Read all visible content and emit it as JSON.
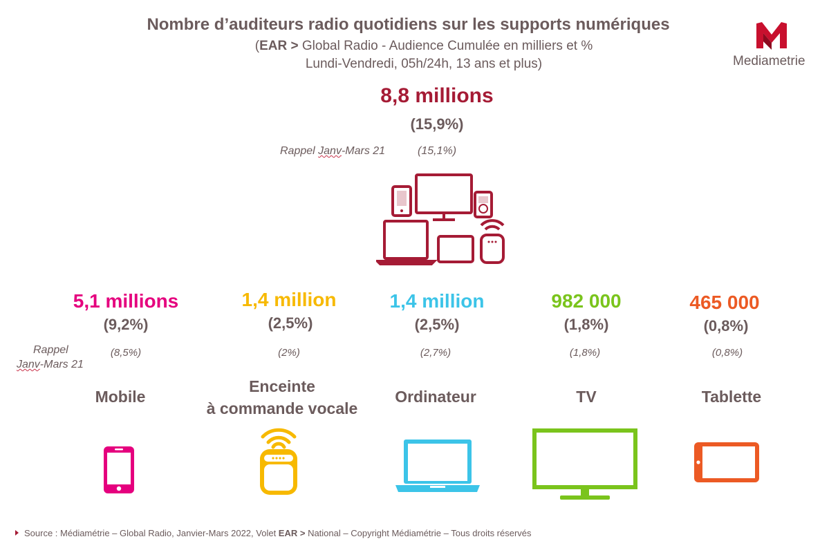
{
  "title": "Nombre d’auditeurs radio quotidiens sur les supports numériques",
  "subtitle": {
    "open_paren": "(",
    "ear_label": "EAR >",
    "line1_rest": " Global Radio - Audience Cumulée en milliers et %",
    "line2": "Lundi-Vendredi, 05h/24h, 13 ans et plus)"
  },
  "logo": {
    "text": "Mediametrie",
    "letter": "M",
    "icon": "mediametrie-logo"
  },
  "total": {
    "value": "8,8 millions",
    "pct": "(15,9%)",
    "recall_label_1": "Rappel ",
    "recall_label_2": "Janv",
    "recall_label_3": "-Mars 21",
    "recall_pct": "(15,1%)",
    "icon": "devices-group-icon",
    "color": "#a51b35"
  },
  "recall_side": {
    "line1": "Rappel",
    "line2a": "Janv",
    "line2b": "-Mars 21"
  },
  "supports": [
    {
      "value": "5,1 millions",
      "pct": "(9,2%)",
      "recall": "(8,5%)",
      "label": "Mobile",
      "color": "#e5007e",
      "icon": "smartphone-icon"
    },
    {
      "value": "1,4 million",
      "pct": "(2,5%)",
      "recall": "(2%)",
      "label_line1": "Enceinte",
      "label_line2": "à commande vocale",
      "color": "#f7b900",
      "icon": "smart-speaker-icon"
    },
    {
      "value": "1,4 million",
      "pct": "(2,5%)",
      "recall": "(2,7%)",
      "label": "Ordinateur",
      "color": "#3cc4e8",
      "icon": "laptop-icon"
    },
    {
      "value": "982 000",
      "pct": "(1,8%)",
      "recall": "(1,8%)",
      "label": "TV",
      "color": "#7ac41c",
      "icon": "tv-icon"
    },
    {
      "value": "465 000",
      "pct": "(0,8%)",
      "recall": "(0,8%)",
      "label": "Tablette",
      "color": "#ec5a24",
      "icon": "tablet-icon"
    }
  ],
  "footer": {
    "part1": "Source : Médiamétrie – Global Radio, Janvier-Mars 2022, Volet ",
    "ear": "EAR >",
    "part2": " National – Copyright Médiamétrie – Tous droits réservés"
  }
}
